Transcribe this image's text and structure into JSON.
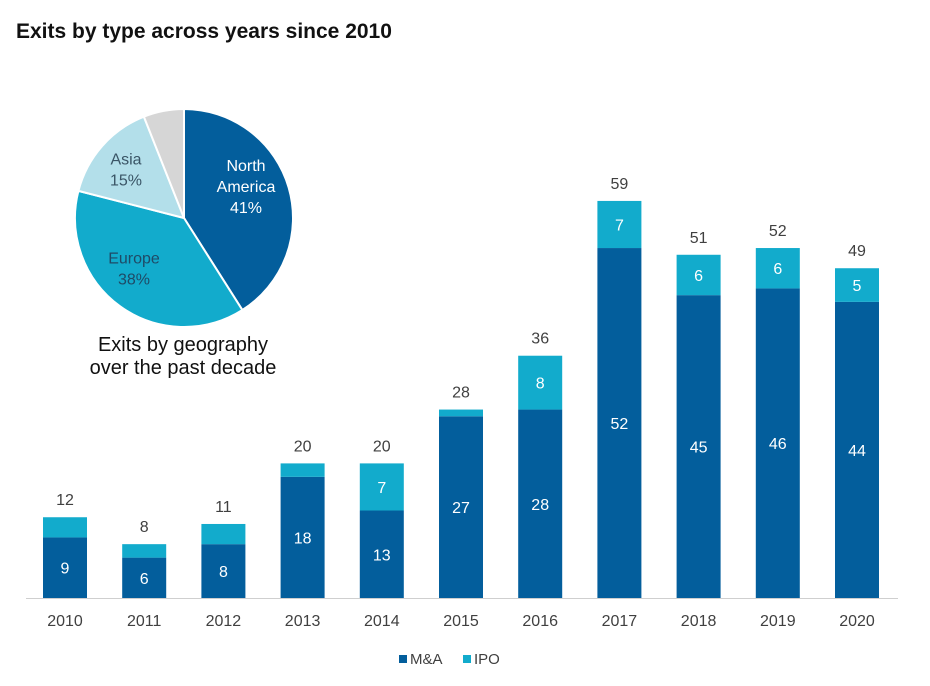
{
  "title": "Exits by type across years since 2010",
  "pie_caption": [
    "Exits by geography",
    "over the past decade"
  ],
  "colors": {
    "ma": "#035e9c",
    "ipo": "#12abcc",
    "north_america": "#035e9c",
    "europe": "#12abcc",
    "asia": "#b3dfea",
    "other": "#d6d6d6"
  },
  "chart_data": [
    {
      "type": "bar",
      "stacked": true,
      "categories": [
        "2010",
        "2011",
        "2012",
        "2013",
        "2014",
        "2015",
        "2016",
        "2017",
        "2018",
        "2019",
        "2020"
      ],
      "series": [
        {
          "name": "M&A",
          "values": [
            9,
            6,
            8,
            18,
            13,
            27,
            28,
            52,
            45,
            46,
            44
          ],
          "labels": [
            "9",
            "6",
            "8",
            "18",
            "13",
            "27",
            "28",
            "52",
            "45",
            "46",
            "44"
          ]
        },
        {
          "name": "IPO",
          "values": [
            3,
            2,
            3,
            2,
            7,
            1,
            8,
            7,
            6,
            6,
            5
          ],
          "labels": [
            "",
            "",
            "",
            "",
            "7",
            "",
            "8",
            "7",
            "6",
            "6",
            "5"
          ]
        }
      ],
      "totals": [
        "12",
        "8",
        "11",
        "20",
        "20",
        "28",
        "36",
        "59",
        "51",
        "52",
        "49"
      ],
      "ylim": [
        0,
        65
      ],
      "grid": false,
      "legend": "bottom"
    },
    {
      "type": "pie",
      "slices": [
        {
          "name": "North America",
          "lines": [
            "North",
            "America",
            "41%"
          ],
          "value": 41
        },
        {
          "name": "Europe",
          "lines": [
            "Europe",
            "38%"
          ],
          "value": 38
        },
        {
          "name": "Asia",
          "lines": [
            "Asia",
            "15%"
          ],
          "value": 15
        },
        {
          "name": "",
          "lines": [],
          "value": 6
        }
      ]
    }
  ]
}
